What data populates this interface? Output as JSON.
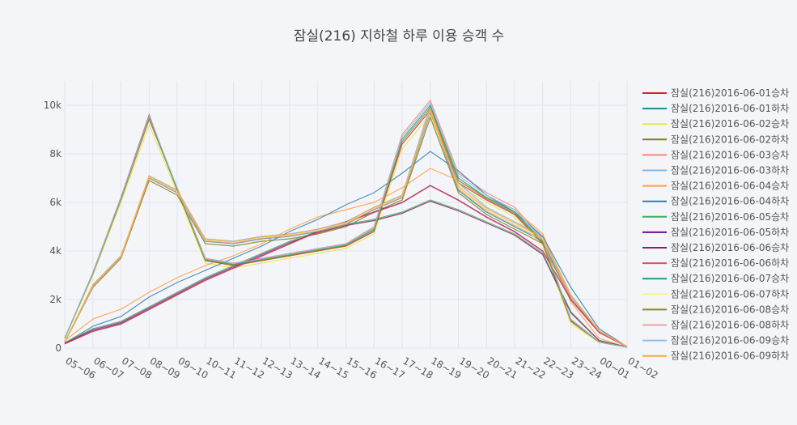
{
  "chart_data": {
    "type": "line",
    "title": "잠실(216) 지하철 하루 이용 승객 수",
    "categories": [
      "05~06",
      "06~07",
      "07~08",
      "08~09",
      "09~10",
      "10~11",
      "11~12",
      "12~13",
      "13~14",
      "14~15",
      "15~16",
      "16~17",
      "17~18",
      "18~19",
      "19~20",
      "20~21",
      "21~22",
      "22~23",
      "23~24",
      "00~01",
      "01~02"
    ],
    "ylim": [
      0,
      11000
    ],
    "yticks": [
      0,
      2000,
      4000,
      6000,
      8000,
      10000
    ],
    "ytick_labels": [
      "0",
      "2k",
      "4k",
      "6k",
      "8k",
      "10k"
    ],
    "grid": true,
    "legend_position": "right",
    "series": [
      {
        "name": "잠실(216)2016-06-01승차",
        "color": "#d62728",
        "values": [
          400,
          3100,
          6200,
          9600,
          6500,
          3600,
          3400,
          3600,
          3800,
          4000,
          4200,
          4800,
          8400,
          9800,
          6800,
          6100,
          5500,
          4300,
          1100,
          250,
          40
        ]
      },
      {
        "name": "잠실(216)2016-06-01하차",
        "color": "#17898e",
        "values": [
          250,
          2600,
          3800,
          7000,
          6400,
          4400,
          4300,
          4500,
          4600,
          4800,
          5100,
          5700,
          6200,
          9700,
          6500,
          5600,
          5000,
          4400,
          2100,
          700,
          60
        ]
      },
      {
        "name": "잠실(216)2016-06-02승차",
        "color": "#e8e84a",
        "values": [
          380,
          3000,
          6000,
          9200,
          6400,
          3500,
          3300,
          3500,
          3700,
          3900,
          4100,
          4700,
          8200,
          9600,
          6700,
          6000,
          5400,
          4200,
          1000,
          240,
          40
        ]
      },
      {
        "name": "잠실(216)2016-06-02하차",
        "color": "#7f7f1a",
        "values": [
          240,
          2500,
          3700,
          6900,
          6300,
          4300,
          4200,
          4400,
          4500,
          4700,
          5000,
          5600,
          6100,
          9500,
          6400,
          5500,
          4900,
          4300,
          2000,
          680,
          60
        ]
      },
      {
        "name": "잠실(216)2016-06-03승차",
        "color": "#f08878",
        "values": [
          420,
          3050,
          6100,
          9400,
          6600,
          3700,
          3500,
          3700,
          3900,
          4100,
          4300,
          5000,
          8800,
          10200,
          7200,
          6400,
          5800,
          4500,
          1200,
          260,
          40
        ]
      },
      {
        "name": "잠실(216)2016-06-03하차",
        "color": "#7fb8e8",
        "values": [
          260,
          2550,
          3750,
          7100,
          6500,
          4500,
          4400,
          4600,
          4700,
          4900,
          5200,
          5800,
          6300,
          10000,
          6800,
          5800,
          5200,
          4600,
          2200,
          720,
          60
        ]
      },
      {
        "name": "잠실(216)2016-06-04승차",
        "color": "#ff9f40",
        "values": [
          300,
          1200,
          1600,
          2300,
          2900,
          3400,
          3800,
          4300,
          4900,
          5400,
          5700,
          6000,
          6600,
          7400,
          6900,
          6200,
          5700,
          4700,
          1900,
          400,
          40
        ]
      },
      {
        "name": "잠실(216)2016-06-04하차",
        "color": "#2f7fb5",
        "values": [
          200,
          900,
          1300,
          2100,
          2700,
          3200,
          3700,
          4200,
          4800,
          5300,
          5900,
          6400,
          7200,
          8100,
          7300,
          6300,
          5600,
          4600,
          2500,
          800,
          60
        ]
      },
      {
        "name": "잠실(216)2016-06-05승차",
        "color": "#3fae5a",
        "values": [
          220,
          800,
          1100,
          1700,
          2300,
          2900,
          3400,
          3900,
          4400,
          4800,
          5100,
          5300,
          5600,
          6100,
          5700,
          5200,
          4700,
          3900,
          1500,
          320,
          40
        ]
      },
      {
        "name": "잠실(216)2016-06-05하차",
        "color": "#6a0d8a",
        "values": [
          180,
          700,
          1000,
          1600,
          2200,
          2800,
          3300,
          3800,
          4300,
          4800,
          5200,
          5600,
          6000,
          6700,
          6100,
          5400,
          4800,
          4000,
          2000,
          650,
          50
        ]
      },
      {
        "name": "잠실(216)2016-06-06승차",
        "color": "#8e1d6e",
        "values": [
          200,
          750,
          1050,
          1650,
          2250,
          2850,
          3350,
          3850,
          4350,
          4750,
          5050,
          5250,
          5550,
          6050,
          5650,
          5150,
          4650,
          3850,
          1450,
          310,
          40
        ]
      },
      {
        "name": "잠실(216)2016-06-06하차",
        "color": "#e05060",
        "values": [
          170,
          680,
          980,
          1580,
          2180,
          2780,
          3280,
          3780,
          4280,
          4780,
          5180,
          5580,
          5980,
          6680,
          6080,
          5380,
          4780,
          3980,
          1980,
          640,
          50
        ]
      },
      {
        "name": "잠실(216)2016-06-07승차",
        "color": "#1a9a8a",
        "values": [
          410,
          3080,
          6150,
          9500,
          6550,
          3650,
          3450,
          3650,
          3850,
          4050,
          4250,
          4900,
          8600,
          10000,
          7000,
          6200,
          5600,
          4400,
          1150,
          255,
          40
        ]
      },
      {
        "name": "잠실(216)2016-06-07하차",
        "color": "#f5f585",
        "values": [
          255,
          2580,
          3780,
          7050,
          6450,
          4450,
          4350,
          4550,
          4650,
          4850,
          5150,
          5750,
          6250,
          9800,
          6600,
          5700,
          5100,
          4500,
          2150,
          710,
          60
        ]
      },
      {
        "name": "잠실(216)2016-06-08승차",
        "color": "#8a8a20",
        "values": [
          405,
          3060,
          6120,
          9450,
          6520,
          3620,
          3420,
          3620,
          3820,
          4020,
          4220,
          4850,
          8500,
          9900,
          6900,
          6150,
          5550,
          4350,
          1120,
          250,
          40
        ]
      },
      {
        "name": "잠실(216)2016-06-08하차",
        "color": "#f4a0a0",
        "values": [
          250,
          2560,
          3760,
          7020,
          6420,
          4420,
          4320,
          4520,
          4620,
          4820,
          5120,
          5720,
          6220,
          9750,
          6550,
          5650,
          5050,
          4450,
          2120,
          700,
          60
        ]
      },
      {
        "name": "잠실(216)2016-06-09승차",
        "color": "#90bde0",
        "values": [
          415,
          3090,
          6180,
          9550,
          6600,
          3680,
          3480,
          3680,
          3880,
          4080,
          4280,
          4950,
          8700,
          10100,
          7100,
          6300,
          5700,
          4450,
          1180,
          258,
          40
        ]
      },
      {
        "name": "잠실(216)2016-06-09하차",
        "color": "#ffa830",
        "values": [
          258,
          2590,
          3790,
          7080,
          6480,
          4480,
          4380,
          4580,
          4680,
          4880,
          5180,
          5780,
          6280,
          9850,
          6650,
          5750,
          5150,
          4550,
          2180,
          715,
          60
        ]
      }
    ]
  }
}
